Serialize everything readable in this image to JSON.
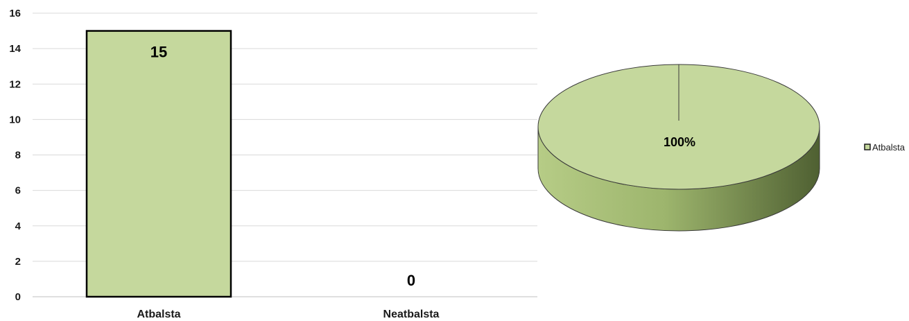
{
  "chart_data": [
    {
      "type": "bar",
      "categories": [
        "Atbalsta",
        "Neatbalsta"
      ],
      "values": [
        15,
        0
      ],
      "data_labels": [
        "15",
        "0"
      ],
      "ylim": [
        0,
        16
      ],
      "yticks": [
        "0",
        "2",
        "4",
        "6",
        "8",
        "10",
        "12",
        "14",
        "16"
      ],
      "grid": true,
      "colors": {
        "bar": "#c5d89d",
        "bar_edge": "#000000",
        "grid": "#d9d9d9"
      }
    },
    {
      "type": "pie",
      "categories": [
        "Atbalsta"
      ],
      "values": [
        100
      ],
      "data_labels": [
        "100%"
      ],
      "legend": {
        "position": "right",
        "entries": [
          "Atbalsta"
        ]
      },
      "colors": {
        "top": "#c5d89d",
        "side_light": "#a4bc72",
        "side_dark": "#4a5a2e",
        "edge": "#3a3a3a"
      }
    }
  ]
}
